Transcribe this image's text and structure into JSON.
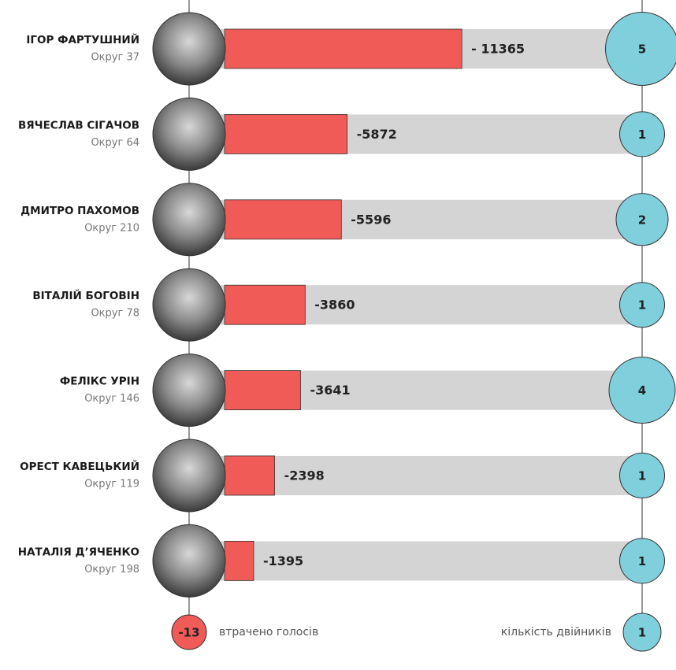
{
  "chart_data": {
    "type": "bar",
    "categories": [
      "ІГОР ФАРТУШНИЙ",
      "ВЯЧЕСЛАВ СІГАЧОВ",
      "ДМИТРО ПАХОМОВ",
      "ВІТАЛІЙ БОГОВІН",
      "ФЕЛІКС УРІН",
      "ОРЕСТ КАВЕЦЬКИЙ",
      "НАТАЛІЯ Д’ЯЧЕНКО"
    ],
    "districts": [
      "Округ 37",
      "Округ 64",
      "Округ 210",
      "Округ 78",
      "Округ 146",
      "Округ 119",
      "Округ 198"
    ],
    "values": [
      -11365,
      -5872,
      -5596,
      -3860,
      -3641,
      -2398,
      -1395
    ],
    "value_labels": [
      "- 11365",
      "-5872",
      "-5596",
      "-3860",
      "-3641",
      "-2398",
      "-1395"
    ],
    "color": "#f05a57",
    "xlim": [
      0,
      -20000
    ],
    "doubles": [
      5,
      1,
      2,
      1,
      4,
      1,
      1
    ],
    "doubles_color": "#7fd0dc",
    "legend": {
      "votes": {
        "sample": -13,
        "label": "втрачено голосів"
      },
      "doubles": {
        "sample": 1,
        "label": "кількість двійників"
      }
    }
  }
}
